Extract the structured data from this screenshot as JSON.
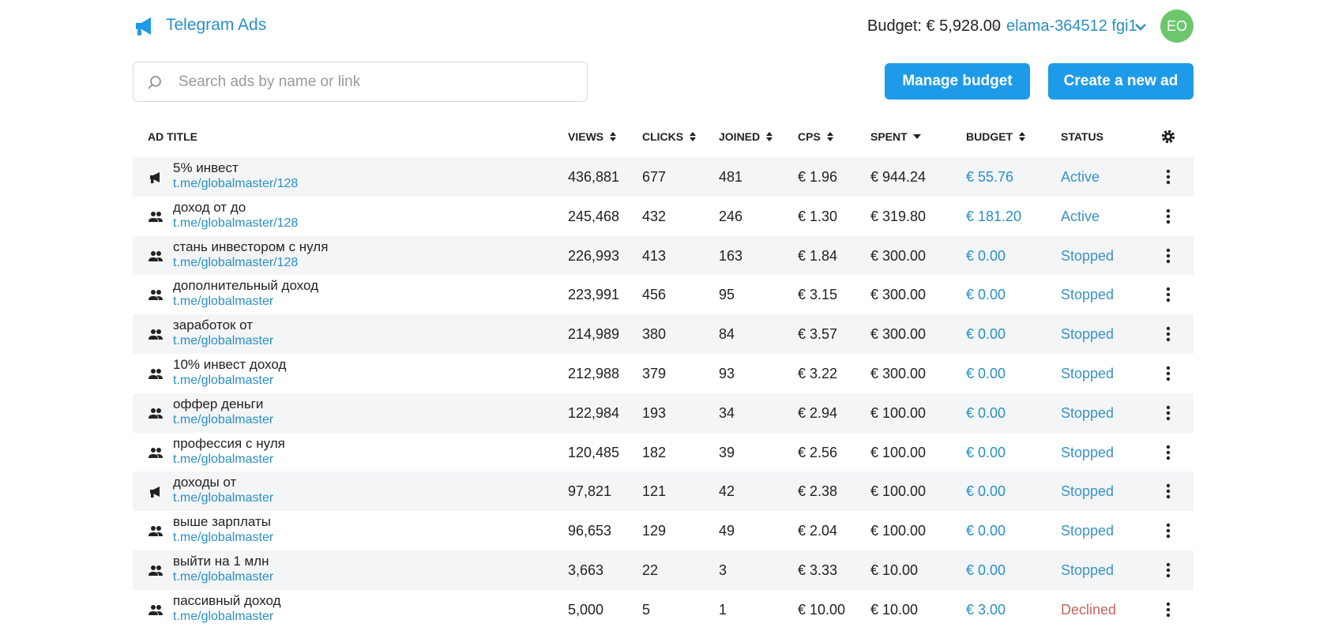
{
  "header": {
    "title": "Telegram Ads",
    "budget": "Budget: € 5,928.00",
    "account": "elama-364512 fgi1",
    "avatar": "EO"
  },
  "search": {
    "placeholder": "Search ads by name or link"
  },
  "buttons": [
    "Manage budget",
    "Create a new ad"
  ],
  "table": {
    "columns": [
      {
        "label": "AD TITLE"
      },
      {
        "label": "VIEWS",
        "sort": "both"
      },
      {
        "label": "CLICKS",
        "sort": "both"
      },
      {
        "label": "JOINED",
        "sort": "both"
      },
      {
        "label": "CPS",
        "sort": "both"
      },
      {
        "label": "SPENT",
        "sort": "desc"
      },
      {
        "label": "BUDGET",
        "sort": "both"
      },
      {
        "label": "STATUS"
      }
    ],
    "rows": [
      {
        "icon": "megaphone",
        "title": "5% инвест",
        "link": "t.me/globalmaster/128",
        "views": "436,881",
        "clicks": "677",
        "joined": "481",
        "cps": "€ 1.96",
        "spent": "€ 944.24",
        "budget": "€ 55.76",
        "status": "Active",
        "status_color": "#3a93c6"
      },
      {
        "icon": "people",
        "title": "доход от до",
        "link": "t.me/globalmaster/128",
        "views": "245,468",
        "clicks": "432",
        "joined": "246",
        "cps": "€ 1.30",
        "spent": "€ 319.80",
        "budget": "€ 181.20",
        "status": "Active",
        "status_color": "#3a93c6"
      },
      {
        "icon": "people",
        "title": "стань инвестором с нуля",
        "link": "t.me/globalmaster/128",
        "views": "226,993",
        "clicks": "413",
        "joined": "163",
        "cps": "€ 1.84",
        "spent": "€ 300.00",
        "budget": "€ 0.00",
        "status": "Stopped",
        "status_color": "#3a93c6"
      },
      {
        "icon": "people",
        "title": "дополнительный доход",
        "link": "t.me/globalmaster",
        "views": "223,991",
        "clicks": "456",
        "joined": "95",
        "cps": "€ 3.15",
        "spent": "€ 300.00",
        "budget": "€ 0.00",
        "status": "Stopped",
        "status_color": "#3a93c6"
      },
      {
        "icon": "people",
        "title": "заработок от",
        "link": "t.me/globalmaster",
        "views": "214,989",
        "clicks": "380",
        "joined": "84",
        "cps": "€ 3.57",
        "spent": "€ 300.00",
        "budget": "€ 0.00",
        "status": "Stopped",
        "status_color": "#3a93c6"
      },
      {
        "icon": "people",
        "title": "10% инвест доход",
        "link": "t.me/globalmaster",
        "views": "212,988",
        "clicks": "379",
        "joined": "93",
        "cps": "€ 3.22",
        "spent": "€ 300.00",
        "budget": "€ 0.00",
        "status": "Stopped",
        "status_color": "#3a93c6"
      },
      {
        "icon": "people",
        "title": "оффер деньги",
        "link": "t.me/globalmaster",
        "views": "122,984",
        "clicks": "193",
        "joined": "34",
        "cps": "€ 2.94",
        "spent": "€ 100.00",
        "budget": "€ 0.00",
        "status": "Stopped",
        "status_color": "#3a93c6"
      },
      {
        "icon": "people",
        "title": "профессия с нуля",
        "link": "t.me/globalmaster",
        "views": "120,485",
        "clicks": "182",
        "joined": "39",
        "cps": "€ 2.56",
        "spent": "€ 100.00",
        "budget": "€ 0.00",
        "status": "Stopped",
        "status_color": "#3a93c6"
      },
      {
        "icon": "megaphone",
        "title": "доходы от",
        "link": "t.me/globalmaster",
        "views": "97,821",
        "clicks": "121",
        "joined": "42",
        "cps": "€ 2.38",
        "spent": "€ 100.00",
        "budget": "€ 0.00",
        "status": "Stopped",
        "status_color": "#3a93c6"
      },
      {
        "icon": "people",
        "title": "выше зарплаты",
        "link": "t.me/globalmaster",
        "views": "96,653",
        "clicks": "129",
        "joined": "49",
        "cps": "€ 2.04",
        "spent": "€ 100.00",
        "budget": "€ 0.00",
        "status": "Stopped",
        "status_color": "#3a93c6"
      },
      {
        "icon": "people",
        "title": "выйти на 1 млн",
        "link": "t.me/globalmaster",
        "views": "3,663",
        "clicks": "22",
        "joined": "3",
        "cps": "€ 3.33",
        "spent": "€ 10.00",
        "budget": "€ 0.00",
        "status": "Stopped",
        "status_color": "#3a93c6"
      },
      {
        "icon": "people",
        "title": "пассивный доход",
        "link": "t.me/globalmaster",
        "views": "5,000",
        "clicks": "5",
        "joined": "1",
        "cps": "€ 10.00",
        "spent": "€ 10.00",
        "budget": "€ 3.00",
        "status": "Declined",
        "status_color": "#c5645d"
      }
    ]
  }
}
